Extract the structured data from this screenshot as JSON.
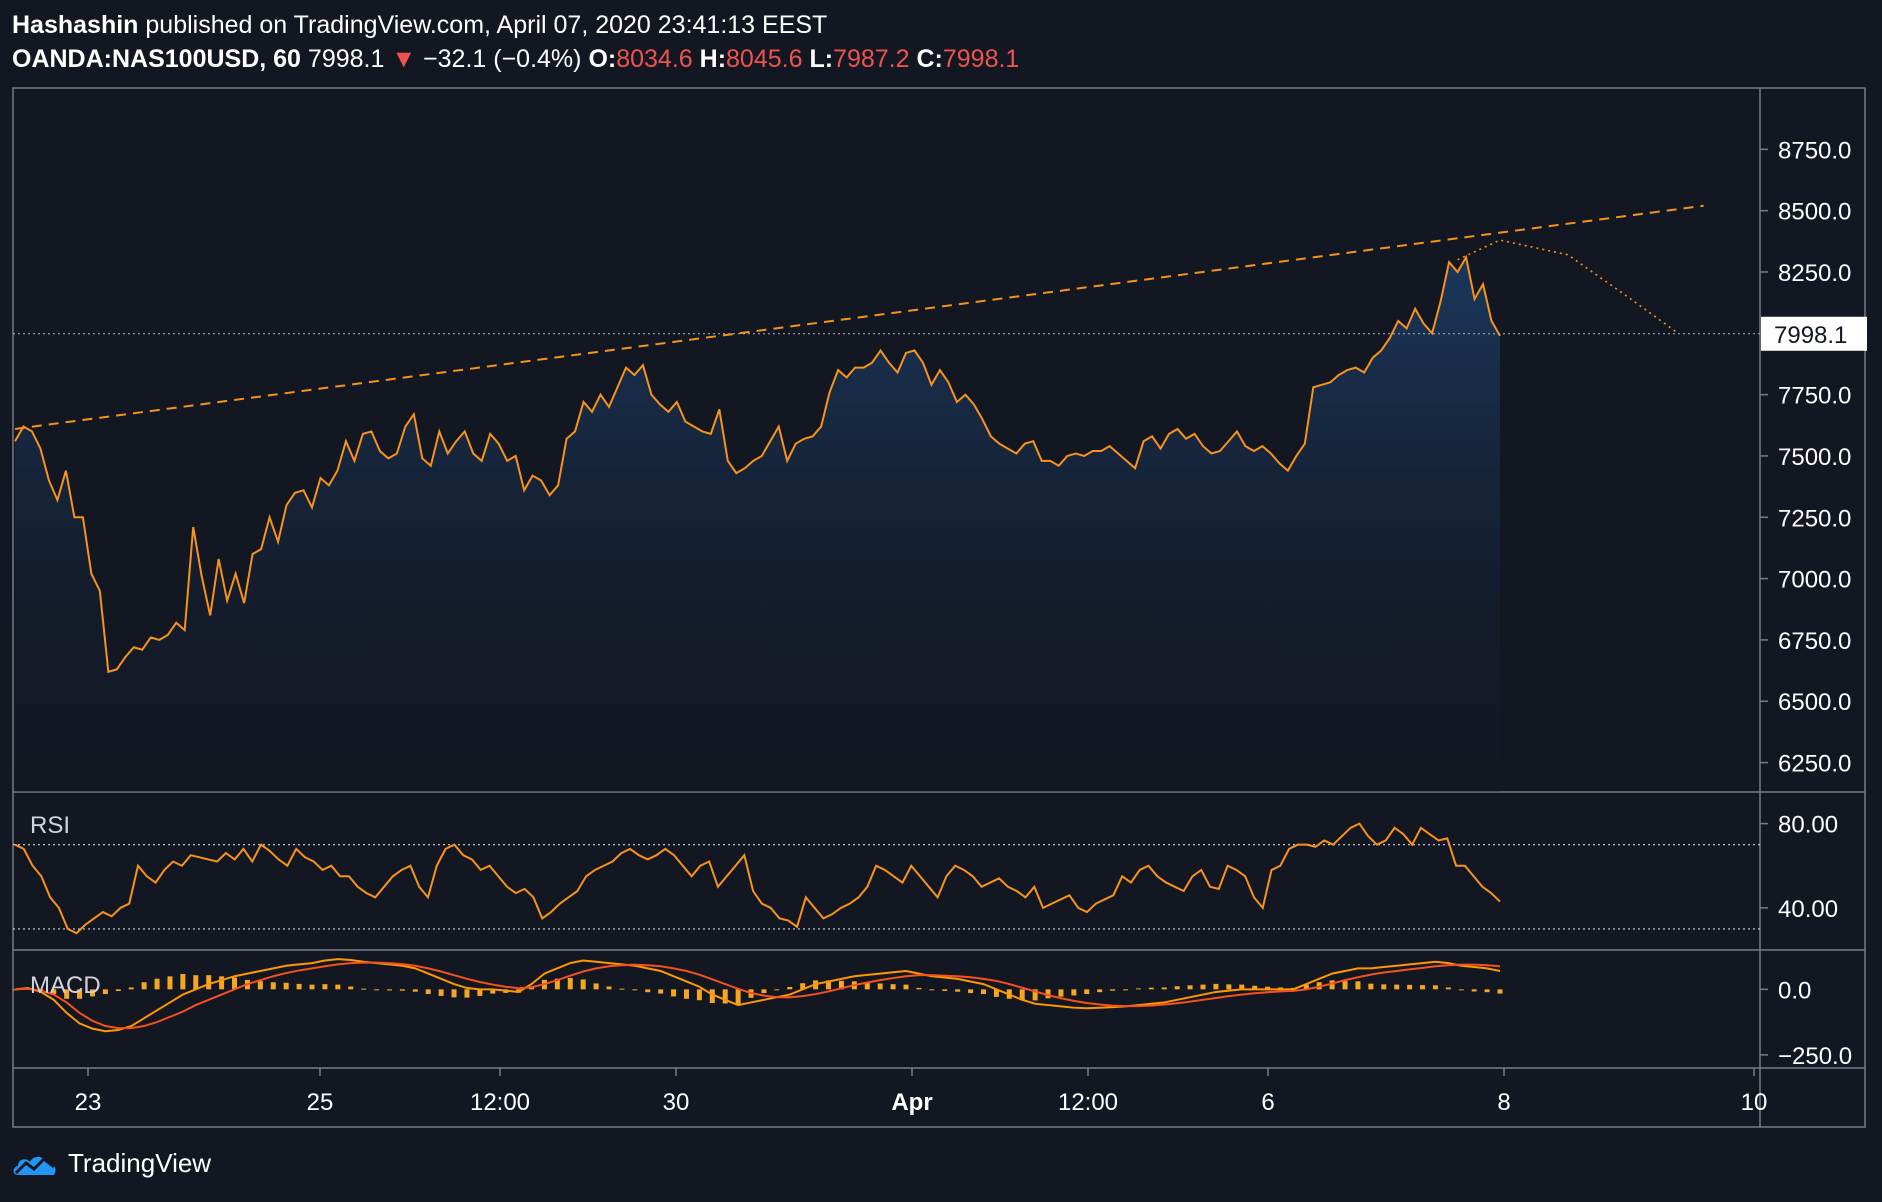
{
  "header": {
    "author": "Hashashin",
    "published_text": "published on TradingView.com, April 07, 2020 23:41:13 EEST",
    "symbol": "OANDA:NAS100USD, 60",
    "last": "7998.1",
    "down_arrow": "▼",
    "change": "−32.1 (−0.4%)",
    "o_label": "O:",
    "o_value": "8034.6",
    "h_label": "H:",
    "h_value": "8045.6",
    "l_label": "L:",
    "l_value": "7987.2",
    "c_label": "C:",
    "c_value": "7998.1"
  },
  "footer": {
    "brand": "TradingView"
  },
  "colors": {
    "background": "#131722",
    "line": "#f7931a",
    "macd_hist": "#f5a623",
    "grid_border": "#787b86",
    "text": "#ffffff"
  },
  "chart_data": {
    "type": "line",
    "title": "OANDA:NAS100USD, 60",
    "x_ticks": [
      "23",
      "25",
      "12:00",
      "30",
      "Apr",
      "12:00",
      "6",
      "8",
      "10"
    ],
    "price_axis": {
      "ticks": [
        "8750.0",
        "8500.0",
        "8250.0",
        "7998.1",
        "7750.0",
        "7500.0",
        "7250.0",
        "7000.0",
        "6750.0",
        "6500.0",
        "6250.0"
      ],
      "ylim": [
        6130,
        9000
      ],
      "last_price": 7998.1,
      "last_label": "7998.1"
    },
    "price_series": [
      7560,
      7620,
      7600,
      7530,
      7400,
      7320,
      7440,
      7250,
      7250,
      7020,
      6950,
      6620,
      6630,
      6680,
      6720,
      6710,
      6760,
      6750,
      6770,
      6820,
      6790,
      7210,
      7010,
      6850,
      7080,
      6910,
      7020,
      6900,
      7100,
      7120,
      7250,
      7150,
      7300,
      7350,
      7360,
      7290,
      7410,
      7380,
      7440,
      7560,
      7480,
      7590,
      7600,
      7520,
      7490,
      7510,
      7620,
      7670,
      7490,
      7460,
      7600,
      7510,
      7560,
      7600,
      7510,
      7480,
      7590,
      7550,
      7480,
      7500,
      7360,
      7420,
      7400,
      7340,
      7380,
      7570,
      7600,
      7720,
      7680,
      7750,
      7700,
      7780,
      7860,
      7830,
      7870,
      7750,
      7710,
      7680,
      7720,
      7640,
      7620,
      7600,
      7590,
      7690,
      7480,
      7430,
      7450,
      7480,
      7500,
      7560,
      7620,
      7480,
      7550,
      7570,
      7580,
      7620,
      7760,
      7850,
      7820,
      7860,
      7860,
      7880,
      7930,
      7880,
      7840,
      7920,
      7930,
      7880,
      7790,
      7850,
      7800,
      7720,
      7750,
      7710,
      7650,
      7580,
      7550,
      7530,
      7510,
      7550,
      7560,
      7480,
      7480,
      7460,
      7500,
      7510,
      7500,
      7520,
      7520,
      7540,
      7510,
      7480,
      7450,
      7560,
      7580,
      7530,
      7590,
      7610,
      7570,
      7590,
      7540,
      7510,
      7520,
      7560,
      7600,
      7540,
      7520,
      7540,
      7510,
      7470,
      7440,
      7500,
      7550,
      7780,
      7790,
      7800,
      7830,
      7850,
      7860,
      7840,
      7900,
      7930,
      7980,
      8050,
      8020,
      8100,
      8040,
      8000,
      8130,
      8290,
      8250,
      8310,
      8140,
      8200,
      8050,
      7990
    ],
    "trendline": {
      "from": {
        "x": 0,
        "y": 7610
      },
      "to": {
        "x": 199,
        "y": 8520
      }
    },
    "projection": [
      {
        "x": 170,
        "y": 8300
      },
      {
        "x": 175,
        "y": 8380
      },
      {
        "x": 183,
        "y": 8320
      },
      {
        "x": 190,
        "y": 8150
      },
      {
        "x": 196,
        "y": 8000
      }
    ],
    "rsi": {
      "label": "RSI",
      "ticks": [
        "80.00",
        "40.00"
      ],
      "levels": [
        70,
        30
      ],
      "ylim": [
        20,
        95
      ],
      "values": [
        70,
        68,
        60,
        55,
        45,
        40,
        30,
        28,
        32,
        35,
        38,
        36,
        40,
        42,
        60,
        55,
        52,
        58,
        62,
        60,
        65,
        64,
        63,
        62,
        66,
        63,
        68,
        62,
        70,
        67,
        63,
        60,
        68,
        64,
        62,
        58,
        60,
        55,
        55,
        50,
        47,
        45,
        50,
        55,
        58,
        60,
        50,
        45,
        60,
        68,
        70,
        65,
        63,
        58,
        60,
        55,
        50,
        47,
        49,
        45,
        35,
        38,
        42,
        45,
        48,
        55,
        58,
        60,
        62,
        66,
        68,
        65,
        63,
        65,
        68,
        65,
        60,
        55,
        60,
        62,
        50,
        55,
        60,
        65,
        48,
        42,
        40,
        35,
        34,
        31,
        45,
        40,
        35,
        37,
        40,
        42,
        45,
        50,
        60,
        58,
        55,
        52,
        60,
        55,
        50,
        45,
        55,
        60,
        58,
        55,
        50,
        52,
        54,
        50,
        48,
        45,
        50,
        40,
        42,
        44,
        46,
        40,
        38,
        42,
        44,
        46,
        55,
        52,
        58,
        60,
        55,
        52,
        50,
        48,
        55,
        58,
        50,
        49,
        60,
        58,
        55,
        45,
        40,
        58,
        60,
        68,
        70,
        70,
        69,
        72,
        70,
        74,
        78,
        80,
        74,
        70,
        72,
        78,
        75,
        70,
        78,
        75,
        72,
        73,
        60,
        60,
        55,
        50,
        47,
        43
      ]
    },
    "macd": {
      "label": "MACD",
      "ticks": [
        "0.0",
        "−250.0"
      ],
      "ylim": [
        -300,
        150
      ],
      "macd": [
        0,
        5,
        -10,
        -40,
        -90,
        -130,
        -150,
        -160,
        -155,
        -140,
        -110,
        -80,
        -50,
        -20,
        0,
        20,
        35,
        50,
        60,
        70,
        80,
        90,
        95,
        100,
        110,
        115,
        112,
        105,
        100,
        95,
        90,
        80,
        60,
        40,
        20,
        5,
        0,
        0,
        -5,
        -10,
        20,
        60,
        80,
        100,
        110,
        105,
        100,
        95,
        90,
        80,
        70,
        50,
        30,
        10,
        -20,
        -40,
        -60,
        -50,
        -40,
        -30,
        -20,
        0,
        20,
        30,
        40,
        50,
        55,
        60,
        65,
        70,
        60,
        50,
        45,
        40,
        30,
        20,
        0,
        -20,
        -40,
        -55,
        -60,
        -65,
        -70,
        -72,
        -70,
        -68,
        -65,
        -60,
        -55,
        -50,
        -40,
        -30,
        -20,
        -10,
        -5,
        0,
        0,
        0,
        0,
        0,
        20,
        40,
        60,
        70,
        80,
        80,
        85,
        90,
        95,
        100,
        105,
        100,
        90,
        85,
        80,
        70
      ],
      "signal": [
        0,
        2,
        -5,
        -20,
        -50,
        -90,
        -120,
        -140,
        -148,
        -148,
        -140,
        -125,
        -105,
        -85,
        -60,
        -40,
        -20,
        0,
        20,
        35,
        50,
        62,
        72,
        80,
        88,
        95,
        100,
        102,
        102,
        100,
        96,
        90,
        80,
        68,
        54,
        40,
        28,
        18,
        10,
        4,
        8,
        20,
        35,
        52,
        68,
        80,
        88,
        92,
        94,
        92,
        88,
        80,
        70,
        56,
        38,
        20,
        2,
        -14,
        -24,
        -30,
        -30,
        -26,
        -18,
        -8,
        4,
        16,
        26,
        35,
        43,
        50,
        54,
        54,
        52,
        50,
        46,
        40,
        32,
        20,
        6,
        -8,
        -22,
        -34,
        -44,
        -52,
        -58,
        -62,
        -64,
        -64,
        -62,
        -58,
        -53,
        -47,
        -40,
        -33,
        -26,
        -20,
        -15,
        -11,
        -8,
        -6,
        0,
        10,
        22,
        35,
        46,
        56,
        64,
        70,
        76,
        82,
        88,
        92,
        94,
        94,
        92,
        88
      ]
    }
  }
}
